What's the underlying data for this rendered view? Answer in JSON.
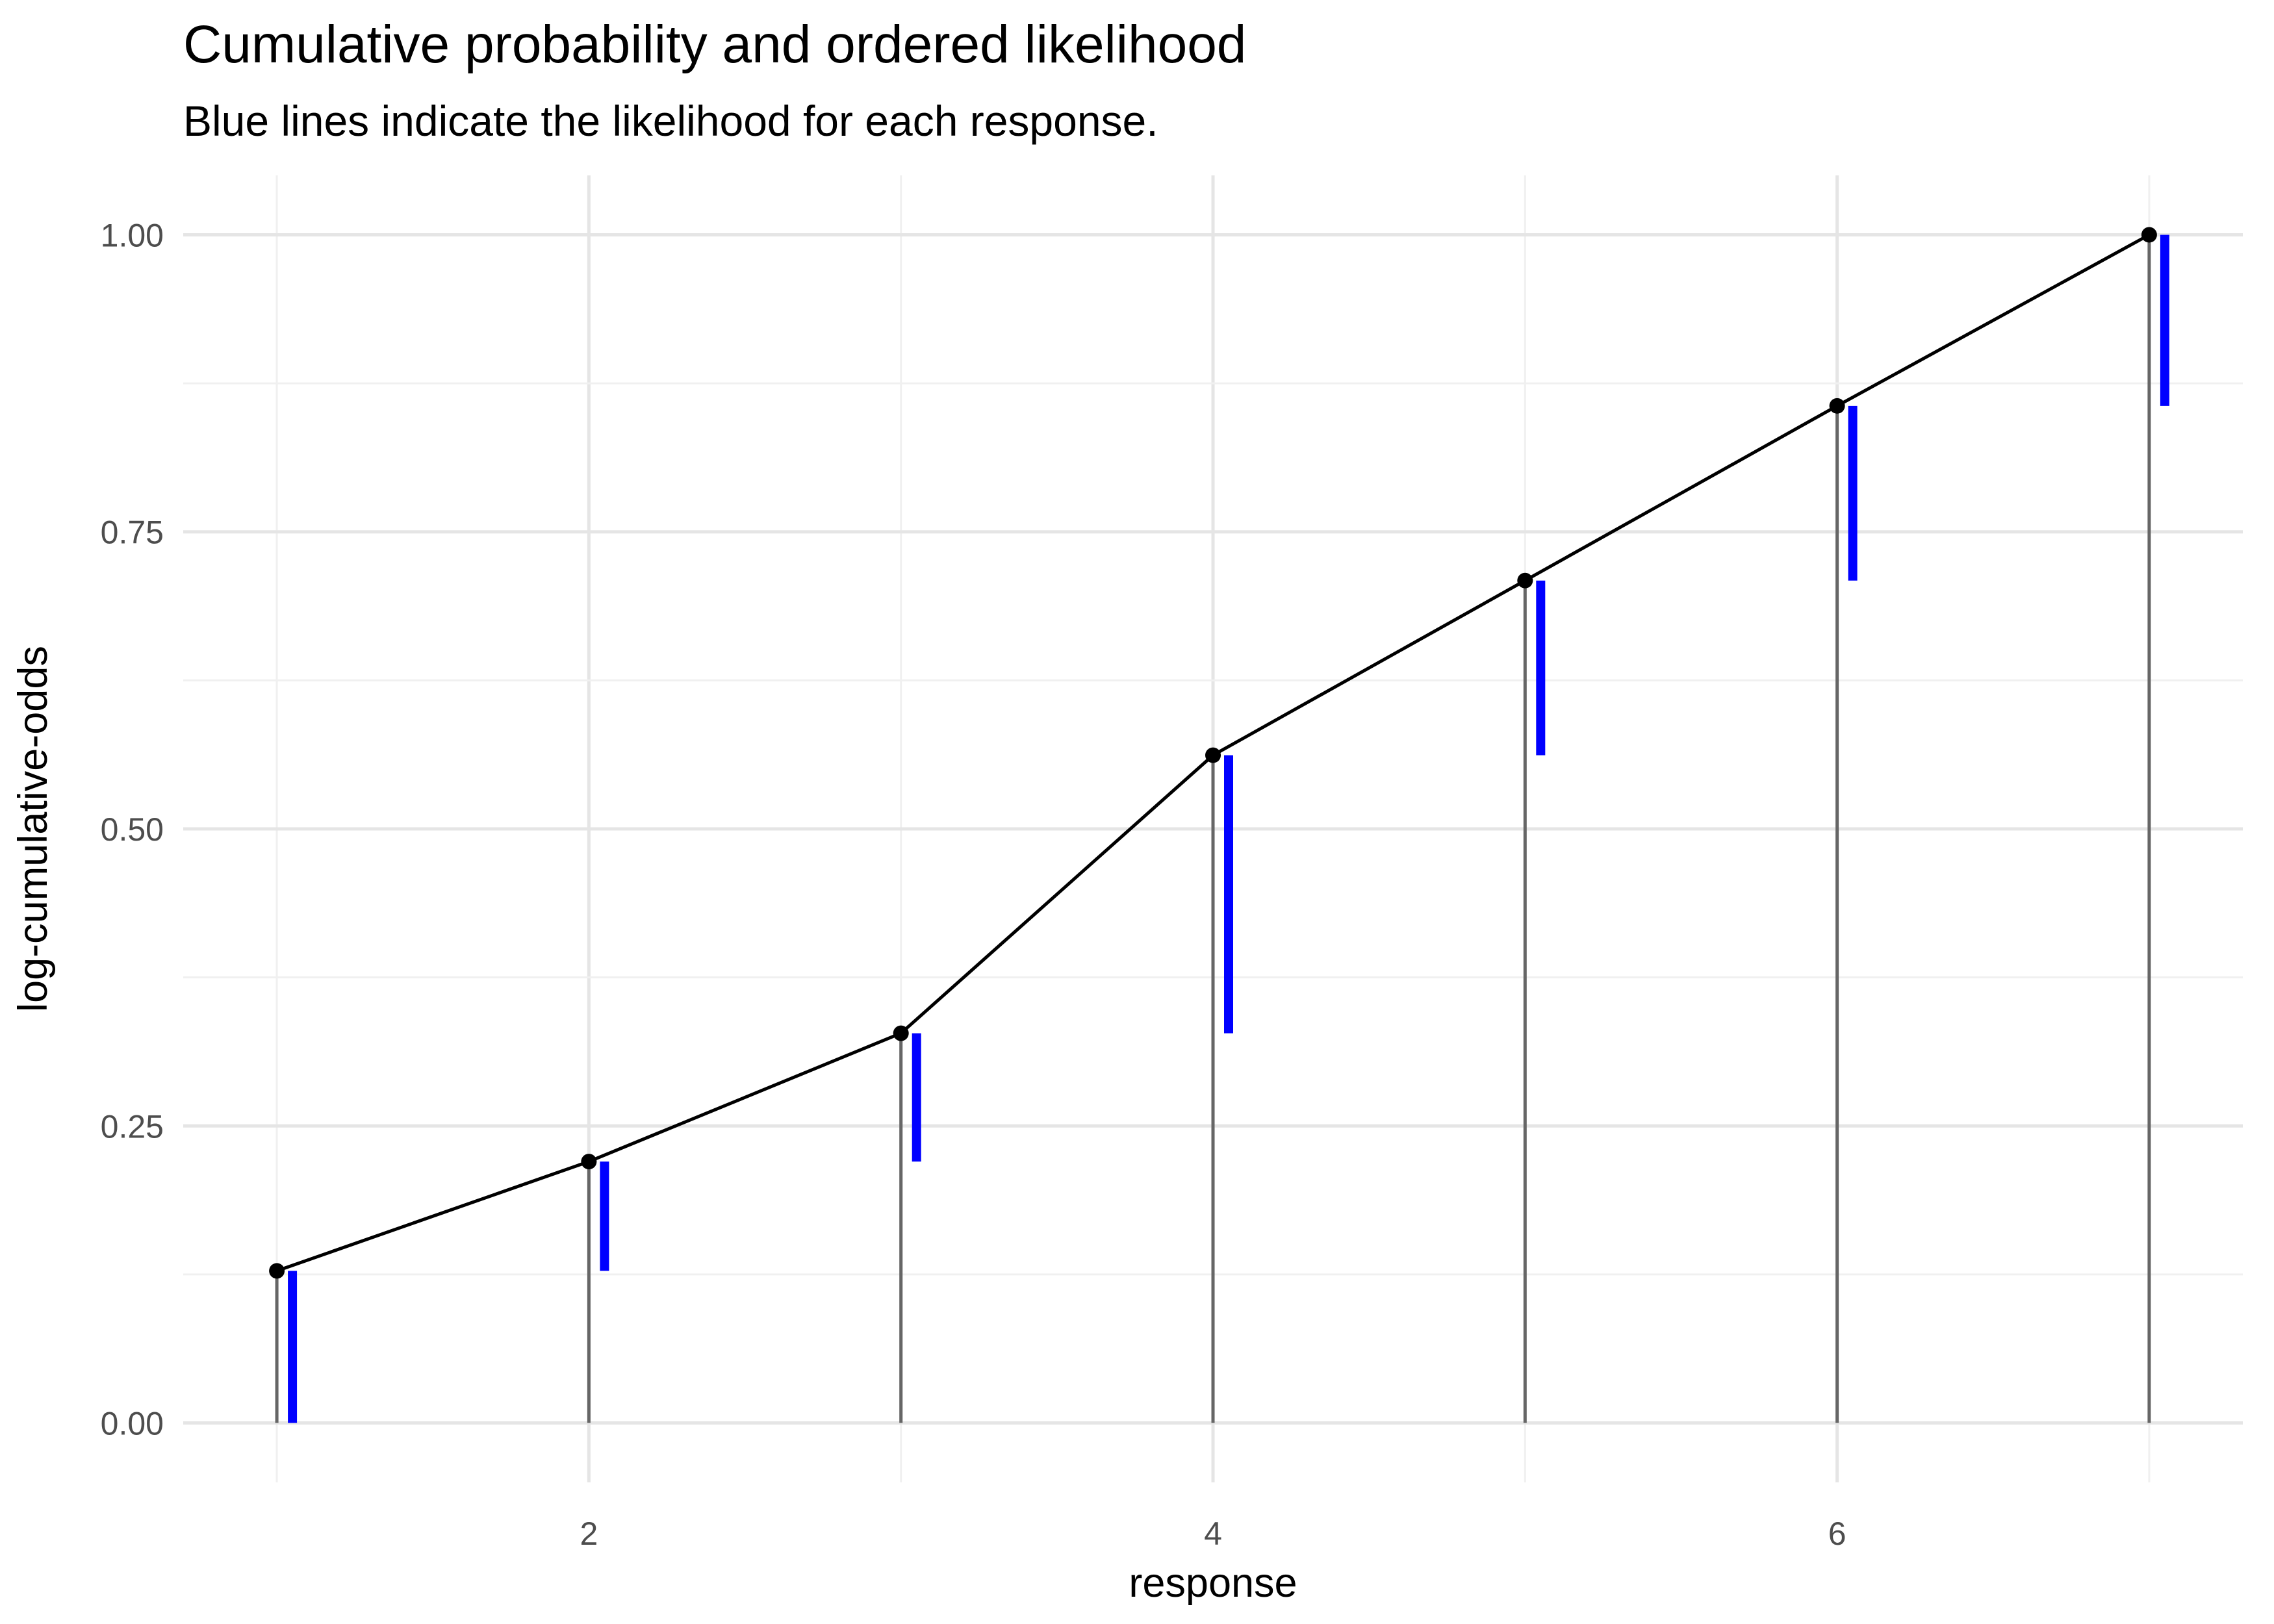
{
  "chart_data": {
    "type": "line",
    "title": "Cumulative probability and ordered likelihood",
    "subtitle": "Blue lines indicate the likelihood for each response.",
    "xlabel": "response",
    "ylabel": "log-cumulative-odds",
    "xlim": [
      0.7,
      7.3
    ],
    "ylim": [
      -0.05,
      1.05
    ],
    "x_ticks": [
      2,
      4,
      6
    ],
    "y_ticks": [
      0,
      0.25,
      0.5,
      0.75,
      1.0
    ],
    "y_tick_labels": [
      "0.00",
      "0.25",
      "0.50",
      "0.75",
      "1.00"
    ],
    "grid": true,
    "series": [
      {
        "x": [
          1,
          2,
          3,
          4,
          5,
          6,
          7
        ],
        "values": [
          0.128,
          0.22,
          0.328,
          0.562,
          0.709,
          0.856,
          1.0
        ]
      }
    ],
    "likelihood_segments": [
      {
        "x": 1,
        "from": 0.0,
        "to": 0.128
      },
      {
        "x": 2,
        "from": 0.128,
        "to": 0.22
      },
      {
        "x": 3,
        "from": 0.22,
        "to": 0.328
      },
      {
        "x": 4,
        "from": 0.328,
        "to": 0.562
      },
      {
        "x": 5,
        "from": 0.562,
        "to": 0.709
      },
      {
        "x": 6,
        "from": 0.709,
        "to": 0.856
      },
      {
        "x": 7,
        "from": 0.856,
        "to": 1.0
      }
    ],
    "colors": {
      "line": "#000000",
      "points": "#000000",
      "likelihood": "#0000ff",
      "drop_lines": "#666666",
      "grid_major": "#e5e5e5",
      "grid_minor": "#f0f0f0"
    }
  }
}
